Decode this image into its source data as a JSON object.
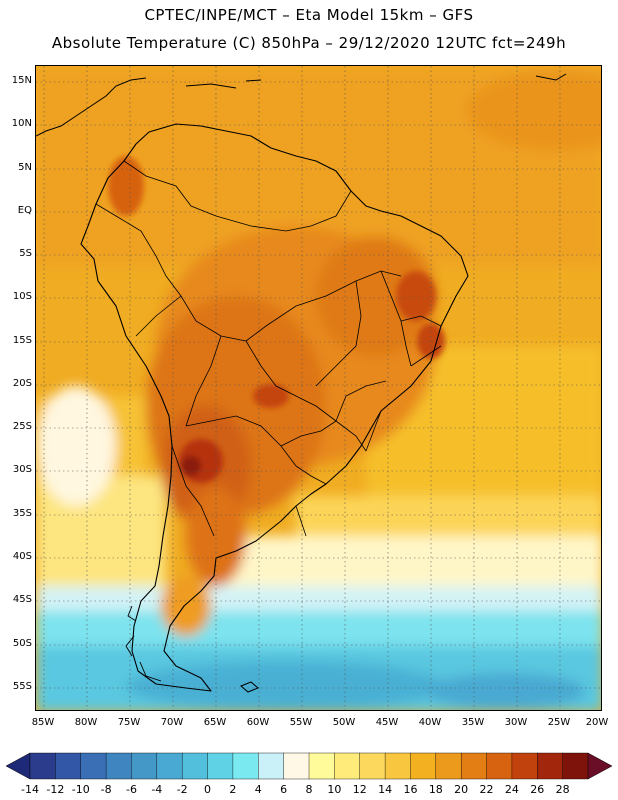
{
  "title": {
    "line1": "CPTEC/INPE/MCT –  Eta Model 15km – GFS",
    "line2": "Absolute Temperature (C) 850hPa – 29/12/2020 12UTC fct=249h"
  },
  "map": {
    "lat_labels": [
      "15N",
      "10N",
      "5N",
      "EQ",
      "5S",
      "10S",
      "15S",
      "20S",
      "25S",
      "30S",
      "35S",
      "40S",
      "45S",
      "50S",
      "55S"
    ],
    "lon_labels": [
      "85W",
      "80W",
      "75W",
      "70W",
      "65W",
      "60W",
      "55W",
      "50W",
      "45W",
      "40W",
      "35W",
      "30W",
      "25W",
      "20W"
    ]
  },
  "colorbar": {
    "ticks": [
      "-14",
      "-12",
      "-10",
      "-8",
      "-6",
      "-4",
      "-2",
      "0",
      "2",
      "4",
      "6",
      "8",
      "10",
      "12",
      "14",
      "16",
      "18",
      "20",
      "22",
      "24",
      "26",
      "28"
    ],
    "colors": [
      "#2b3c8c",
      "#3157a6",
      "#3a6fb5",
      "#3f86c0",
      "#4398c8",
      "#4aa9d2",
      "#52bfdc",
      "#60d2e6",
      "#7ae9f0",
      "#c9f1f7",
      "#fff8e6",
      "#fffb9a",
      "#ffeb7a",
      "#fcd95c",
      "#f8c63f",
      "#f3b021",
      "#eb9a1b",
      "#e27e14",
      "#d7620f",
      "#c2420d",
      "#a2260c",
      "#7d130b"
    ],
    "end_left_color": "#1e2a78",
    "end_right_color": "#6a0d27"
  }
}
